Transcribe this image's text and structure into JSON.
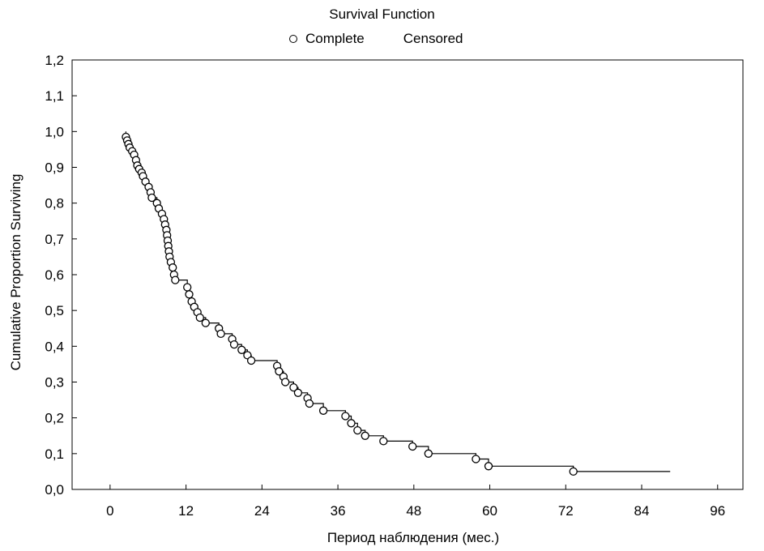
{
  "chart_data": {
    "type": "line",
    "title": "Survival Function",
    "legend": [
      "Complete",
      "Censored"
    ],
    "legend_position": "top-center",
    "xlabel": "Период наблюдения (мес.)",
    "ylabel": "Cumulative Proportion Surviving",
    "xlim": [
      -6,
      100
    ],
    "ylim": [
      0,
      1.2
    ],
    "x_ticks": [
      "0",
      "12",
      "24",
      "36",
      "48",
      "60",
      "72",
      "84",
      "96"
    ],
    "y_ticks": [
      "0,0",
      "0,1",
      "0,2",
      "0,3",
      "0,4",
      "0,5",
      "0,6",
      "0,7",
      "0,8",
      "0,9",
      "1,0",
      "1,1",
      "1,2"
    ],
    "grid": false,
    "series": [
      {
        "name": "Complete",
        "step": true,
        "x": [
          2.5,
          2.7,
          2.9,
          3.1,
          3.5,
          3.8,
          4.1,
          4.3,
          4.6,
          5.0,
          5.2,
          5.6,
          6.1,
          6.4,
          6.6,
          7.4,
          7.7,
          8.2,
          8.5,
          8.7,
          8.9,
          9.0,
          9.1,
          9.2,
          9.3,
          9.4,
          9.6,
          9.9,
          10.1,
          10.3,
          12.2,
          12.5,
          12.9,
          13.3,
          13.8,
          14.2,
          15.1,
          17.2,
          17.5,
          19.3,
          19.6,
          20.8,
          21.7,
          22.3,
          26.4,
          26.7,
          27.4,
          27.7,
          29.0,
          29.7,
          31.2,
          31.5,
          33.7,
          37.2,
          38.1,
          39.1,
          40.3,
          43.2,
          47.8,
          50.3,
          57.8,
          59.8,
          73.2
        ],
        "y": [
          0.985,
          0.975,
          0.965,
          0.955,
          0.945,
          0.935,
          0.92,
          0.905,
          0.895,
          0.885,
          0.875,
          0.86,
          0.845,
          0.83,
          0.815,
          0.8,
          0.785,
          0.77,
          0.755,
          0.74,
          0.725,
          0.71,
          0.695,
          0.68,
          0.665,
          0.65,
          0.635,
          0.62,
          0.6,
          0.585,
          0.565,
          0.545,
          0.525,
          0.51,
          0.495,
          0.48,
          0.465,
          0.45,
          0.435,
          0.42,
          0.405,
          0.39,
          0.375,
          0.36,
          0.345,
          0.33,
          0.315,
          0.3,
          0.285,
          0.27,
          0.255,
          0.24,
          0.22,
          0.205,
          0.185,
          0.165,
          0.15,
          0.135,
          0.12,
          0.1,
          0.085,
          0.065,
          0.05
        ]
      },
      {
        "name": "Censored",
        "x": [],
        "y": []
      }
    ]
  }
}
